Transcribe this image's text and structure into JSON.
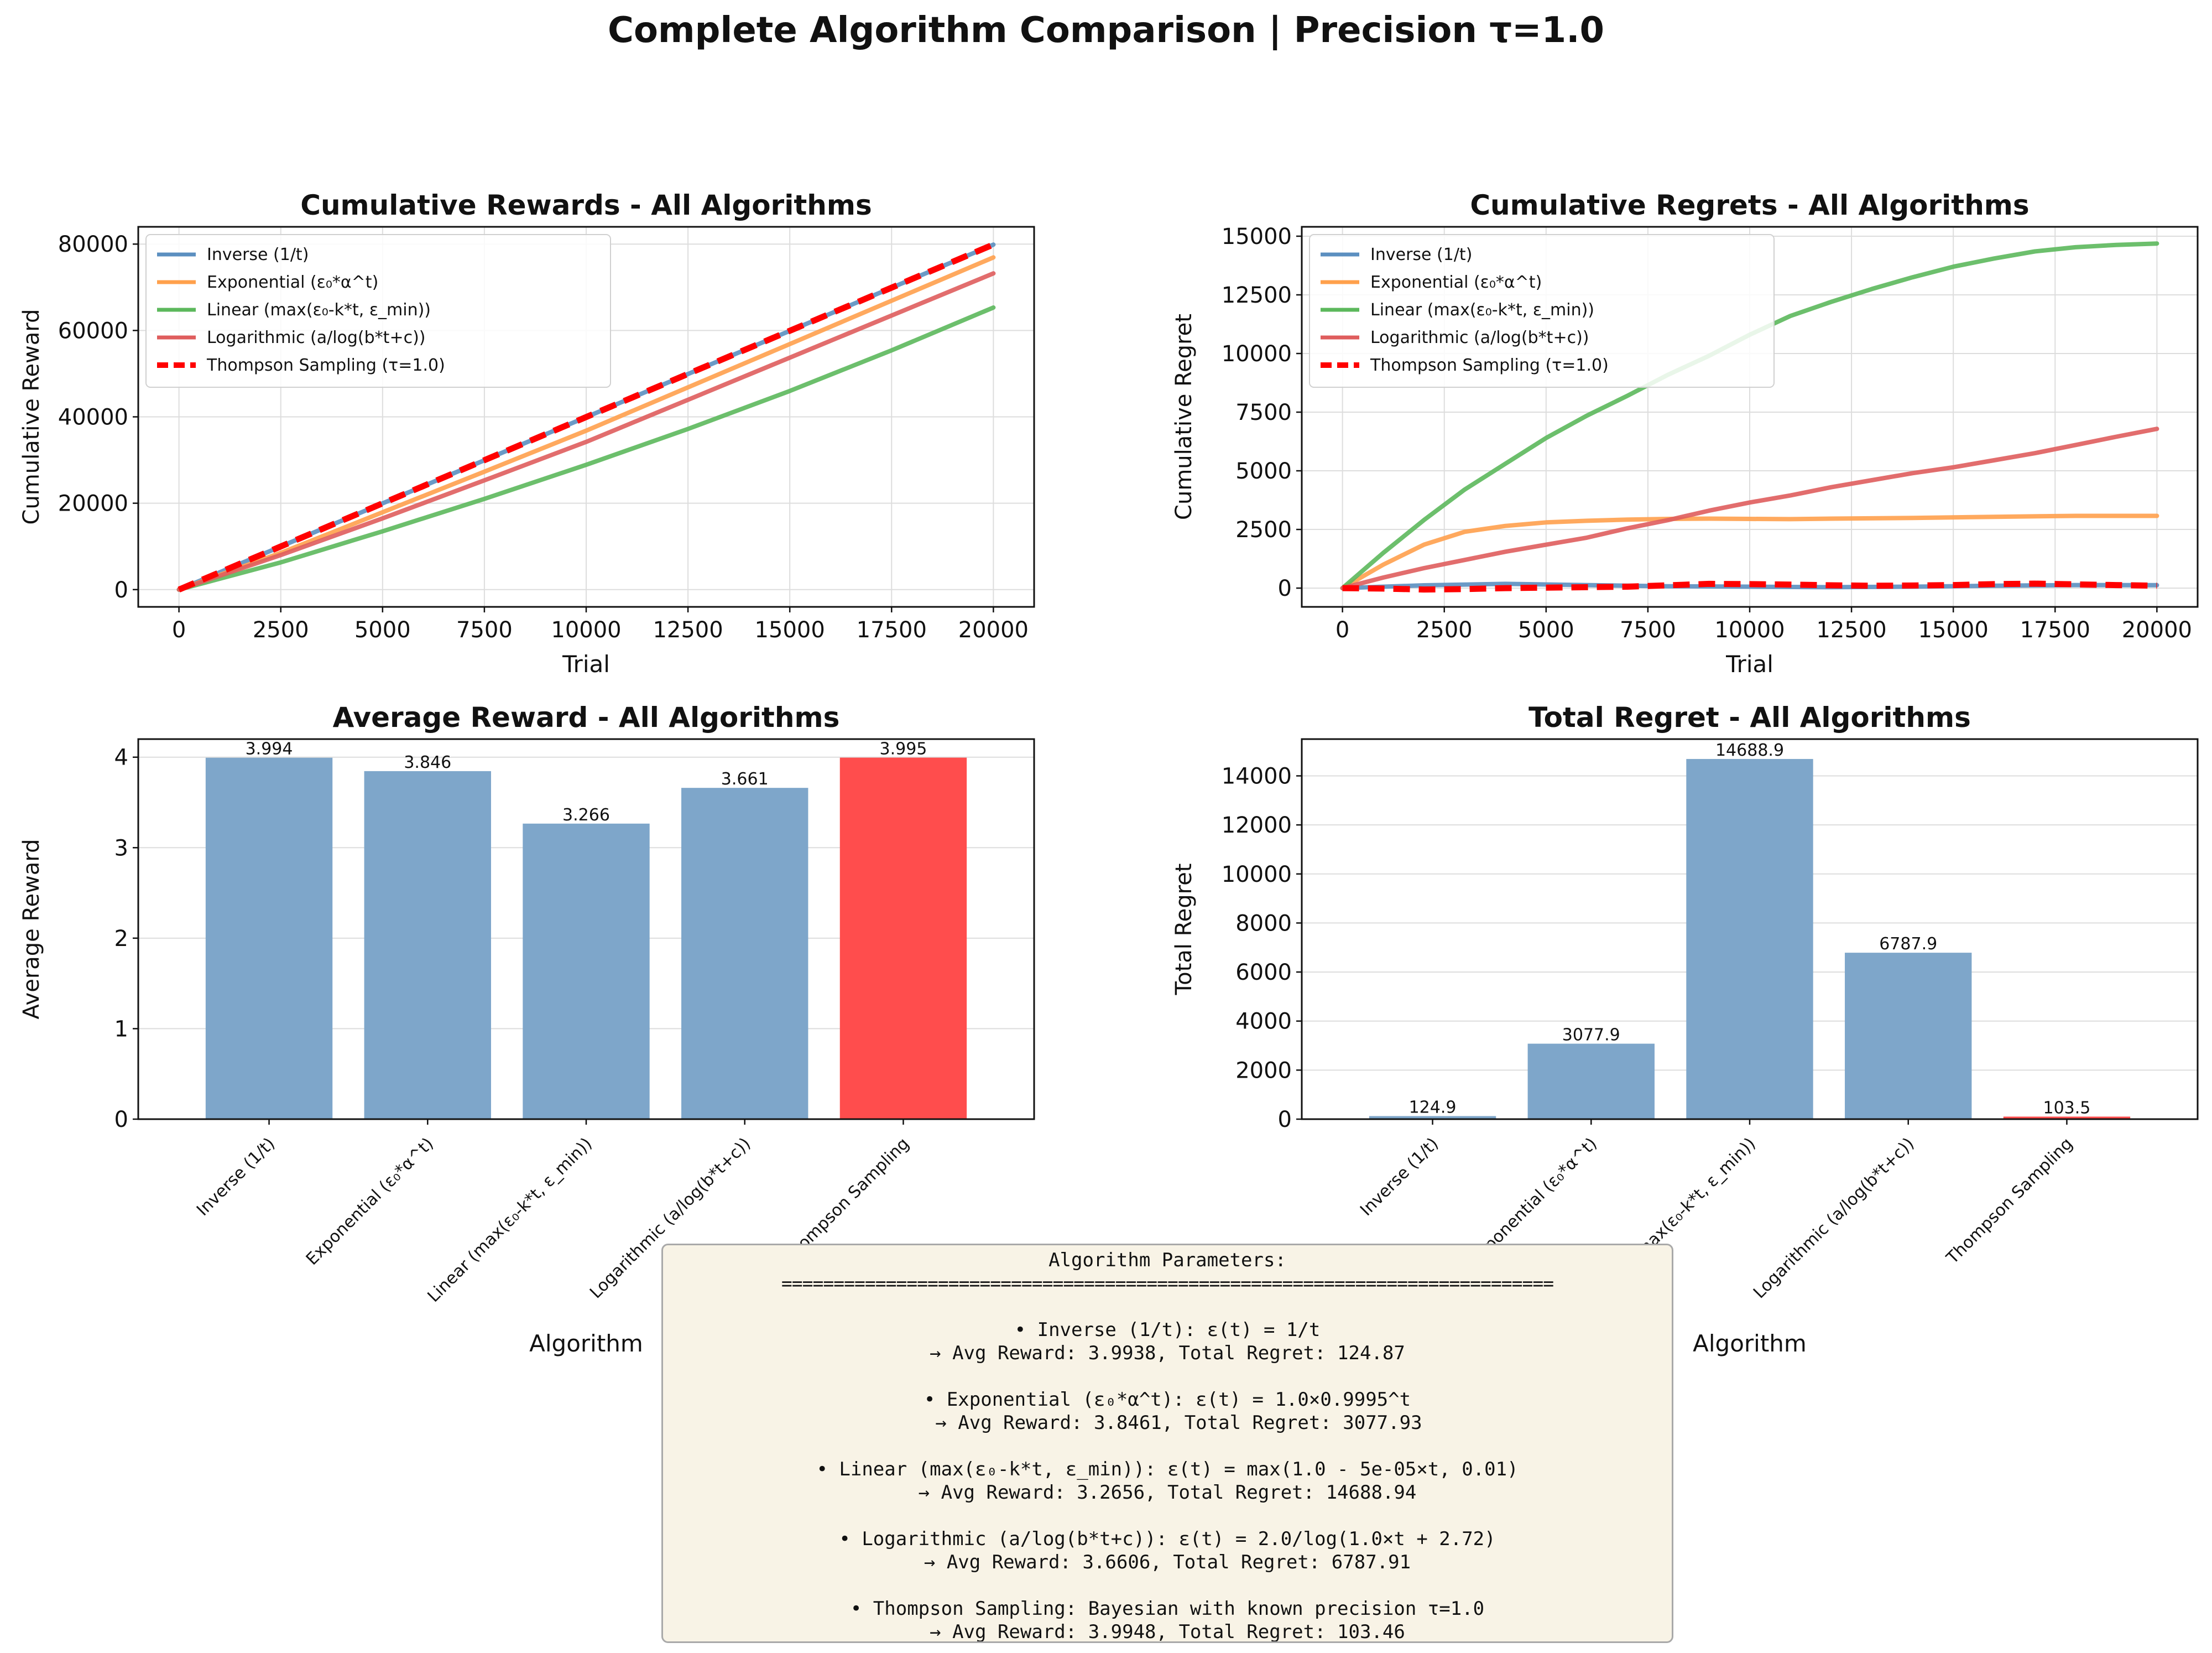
{
  "suptitle": "Complete Algorithm Comparison | Precision τ=1.0",
  "colors": {
    "inverse": "#5b8fc0",
    "exponential": "#ffa04c",
    "linear": "#5cb85c",
    "logarithmic": "#df5d5d",
    "thompson": "#ff0000",
    "bar_default": "#7ea6ca",
    "bar_highlight": "#ff4d4d"
  },
  "chart_data": [
    {
      "type": "line",
      "title": "Cumulative Rewards - All Algorithms",
      "xlabel": "Trial",
      "ylabel": "Cumulative Reward",
      "xlim": [
        -1000,
        21000
      ],
      "ylim": [
        -4000,
        84000
      ],
      "xticks": [
        0,
        2500,
        5000,
        7500,
        10000,
        12500,
        15000,
        17500,
        20000
      ],
      "yticks": [
        0,
        20000,
        40000,
        60000,
        80000
      ],
      "grid": true,
      "legend": "upper-left",
      "series": [
        {
          "name": "Inverse (1/t)",
          "color_key": "inverse",
          "dash": "solid",
          "x": [
            0,
            20000
          ],
          "y": [
            0,
            79876
          ]
        },
        {
          "name": "Exponential (ε₀*α^t)",
          "color_key": "exponential",
          "dash": "solid",
          "x": [
            0,
            2500,
            5000,
            7500,
            10000,
            20000
          ],
          "y": [
            0,
            8500,
            17900,
            27300,
            36800,
            76922
          ]
        },
        {
          "name": "Linear (max(ε₀-k*t, ε_min))",
          "color_key": "linear",
          "dash": "solid",
          "x": [
            0,
            2500,
            5000,
            7500,
            10000,
            12500,
            15000,
            17500,
            20000
          ],
          "y": [
            0,
            6300,
            13500,
            21000,
            28900,
            37200,
            46000,
            55400,
            65312
          ]
        },
        {
          "name": "Logarithmic (a/log(b*t+c))",
          "color_key": "logarithmic",
          "dash": "solid",
          "x": [
            0,
            2500,
            5000,
            7500,
            10000,
            20000
          ],
          "y": [
            0,
            8000,
            16500,
            25300,
            34200,
            73212
          ]
        },
        {
          "name": "Thompson Sampling (τ=1.0)",
          "color_key": "thompson",
          "dash": "dashed",
          "x": [
            0,
            20000
          ],
          "y": [
            0,
            79896
          ]
        }
      ]
    },
    {
      "type": "line",
      "title": "Cumulative Regrets - All Algorithms",
      "xlabel": "Trial",
      "ylabel": "Cumulative Regret",
      "xlim": [
        -1000,
        21000
      ],
      "ylim": [
        -800,
        15400
      ],
      "xticks": [
        0,
        2500,
        5000,
        7500,
        10000,
        12500,
        15000,
        17500,
        20000
      ],
      "yticks": [
        0,
        2500,
        5000,
        7500,
        10000,
        12500,
        15000
      ],
      "grid": true,
      "legend": "upper-left",
      "series": [
        {
          "name": "Inverse (1/t)",
          "color_key": "inverse",
          "dash": "solid",
          "x": [
            0,
            2000,
            4000,
            6000,
            8000,
            10000,
            12000,
            14000,
            16000,
            18000,
            20000
          ],
          "y": [
            0,
            120,
            180,
            130,
            80,
            60,
            40,
            60,
            100,
            130,
            125
          ]
        },
        {
          "name": "Exponential (ε₀*α^t)",
          "color_key": "exponential",
          "dash": "solid",
          "x": [
            0,
            1000,
            2000,
            3000,
            4000,
            5000,
            6000,
            7000,
            8000,
            9000,
            10000,
            11000,
            12000,
            14000,
            16000,
            18000,
            20000
          ],
          "y": [
            0,
            1000,
            1850,
            2400,
            2650,
            2800,
            2870,
            2920,
            2950,
            2960,
            2950,
            2940,
            2960,
            2990,
            3040,
            3080,
            3078
          ]
        },
        {
          "name": "Linear (max(ε₀-k*t, ε_min))",
          "color_key": "linear",
          "dash": "solid",
          "x": [
            0,
            1000,
            2000,
            3000,
            4000,
            5000,
            6000,
            7000,
            8000,
            9000,
            10000,
            11000,
            12000,
            13000,
            14000,
            15000,
            16000,
            17000,
            18000,
            19000,
            20000
          ],
          "y": [
            0,
            1500,
            2900,
            4200,
            5300,
            6400,
            7350,
            8200,
            9100,
            9900,
            10800,
            11600,
            12200,
            12750,
            13250,
            13700,
            14050,
            14350,
            14530,
            14630,
            14689
          ]
        },
        {
          "name": "Logarithmic (a/log(b*t+c))",
          "color_key": "logarithmic",
          "dash": "solid",
          "x": [
            0,
            1000,
            2000,
            3000,
            4000,
            5000,
            6000,
            7000,
            8000,
            9000,
            10000,
            11000,
            12000,
            13000,
            14000,
            15000,
            16000,
            17000,
            18000,
            19000,
            20000
          ],
          "y": [
            0,
            450,
            850,
            1200,
            1550,
            1850,
            2150,
            2550,
            2900,
            3300,
            3650,
            3950,
            4300,
            4600,
            4900,
            5150,
            5450,
            5750,
            6100,
            6450,
            6788
          ]
        },
        {
          "name": "Thompson Sampling (τ=1.0)",
          "color_key": "thompson",
          "dash": "dashed",
          "x": [
            0,
            1000,
            2000,
            3000,
            4000,
            5000,
            6000,
            7000,
            8000,
            9000,
            10000,
            11000,
            12000,
            13000,
            14000,
            15000,
            16000,
            17000,
            18000,
            19000,
            20000
          ],
          "y": [
            0,
            -20,
            -60,
            -40,
            0,
            20,
            40,
            60,
            120,
            180,
            170,
            150,
            120,
            100,
            110,
            130,
            170,
            190,
            160,
            130,
            103
          ]
        }
      ]
    },
    {
      "type": "bar",
      "title": "Average Reward - All Algorithms",
      "xlabel": "Algorithm",
      "ylabel": "Average Reward",
      "ylim": [
        0,
        4.2
      ],
      "yticks": [
        0,
        1,
        2,
        3,
        4
      ],
      "grid": true,
      "categories": [
        "Inverse (1/t)",
        "Exponential (ε₀*α^t)",
        "Linear (max(ε₀-k*t, ε_min))",
        "Logarithmic (a/log(b*t+c))",
        "Thompson Sampling"
      ],
      "values": [
        3.994,
        3.846,
        3.266,
        3.661,
        3.995
      ],
      "labels": [
        "3.994",
        "3.846",
        "3.266",
        "3.661",
        "3.995"
      ],
      "highlight_index": 4
    },
    {
      "type": "bar",
      "title": "Total Regret - All Algorithms",
      "xlabel": "Algorithm",
      "ylabel": "Total Regret",
      "ylim": [
        0,
        15500
      ],
      "yticks": [
        0,
        2000,
        4000,
        6000,
        8000,
        10000,
        12000,
        14000
      ],
      "grid": true,
      "categories": [
        "Inverse (1/t)",
        "Exponential (ε₀*α^t)",
        "Linear (max(ε₀-k*t, ε_min))",
        "Logarithmic (a/log(b*t+c))",
        "Thompson Sampling"
      ],
      "values": [
        124.9,
        3077.9,
        14688.9,
        6787.9,
        103.5
      ],
      "labels": [
        "124.9",
        "3077.9",
        "14688.9",
        "6787.9",
        "103.5"
      ],
      "highlight_index": 4
    }
  ],
  "params_box": {
    "lines": [
      "Algorithm Parameters:",
      "==========================================================================",
      "",
      "• Inverse (1/t): ε(t) = 1/t",
      "→ Avg Reward: 3.9938, Total Regret: 124.87",
      "",
      "• Exponential (ε₀*α^t): ε(t) = 1.0×0.9995^t",
      "  → Avg Reward: 3.8461, Total Regret: 3077.93",
      "",
      "• Linear (max(ε₀-k*t, ε_min)): ε(t) = max(1.0 - 5e-05×t, 0.01)",
      "→ Avg Reward: 3.2656, Total Regret: 14688.94",
      "",
      "• Logarithmic (a/log(b*t+c)): ε(t) = 2.0/log(1.0×t + 2.72)",
      "→ Avg Reward: 3.6606, Total Regret: 6787.91",
      "",
      "• Thompson Sampling: Bayesian with known precision τ=1.0",
      "→ Avg Reward: 3.9948, Total Regret: 103.46"
    ]
  }
}
